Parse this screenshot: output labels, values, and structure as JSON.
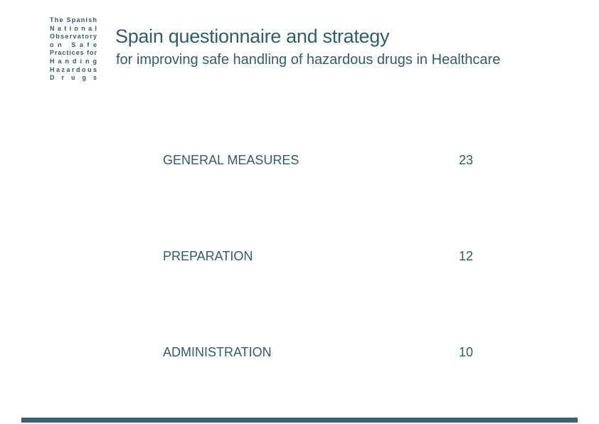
{
  "slide": {
    "organization": {
      "lines": [
        "The Spanish",
        "National",
        "Observatory",
        "on Safe",
        "Practices for",
        "Handing",
        "Hazardous",
        "Drugs"
      ]
    },
    "title": "Spain questionnaire and strategy",
    "subtitle": "for improving safe handling of hazardous drugs in Healthcare",
    "items": [
      {
        "label": "GENERAL MEASURES",
        "value": "23"
      },
      {
        "label": "PREPARATION",
        "value": "12"
      },
      {
        "label": "ADMINISTRATION",
        "value": "10"
      }
    ],
    "colors": {
      "text": "#2E5D6B",
      "accent_bar": "#376373"
    }
  }
}
